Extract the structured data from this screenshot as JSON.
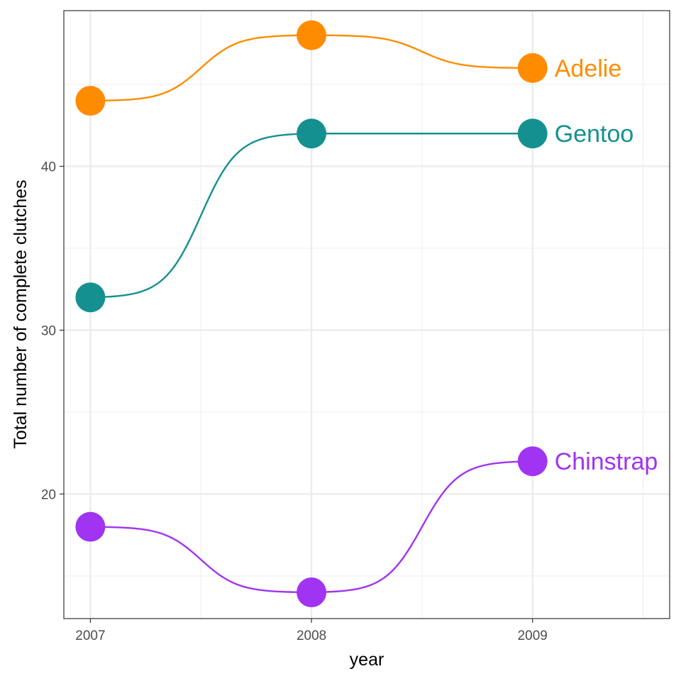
{
  "chart_data": {
    "type": "line",
    "title": "",
    "xlabel": "year",
    "ylabel": "Total number of complete clutches",
    "x": [
      2007,
      2008,
      2009
    ],
    "xlim": [
      2006.88,
      2009.62
    ],
    "ylim": [
      12.4,
      49.5
    ],
    "x_ticks": [
      2007,
      2008,
      2009
    ],
    "y_ticks": [
      20,
      30,
      40
    ],
    "grid": true,
    "legend": "direct labels at right end of each line",
    "line_style": "smoothed step (sigmoid) between points",
    "series": [
      {
        "name": "Adelie",
        "color": "#FF8C00",
        "values": [
          44,
          48,
          46
        ]
      },
      {
        "name": "Gentoo",
        "color": "#159090",
        "values": [
          32,
          42,
          42
        ]
      },
      {
        "name": "Chinstrap",
        "color": "#A034F0",
        "values": [
          18,
          14,
          22
        ]
      }
    ]
  }
}
